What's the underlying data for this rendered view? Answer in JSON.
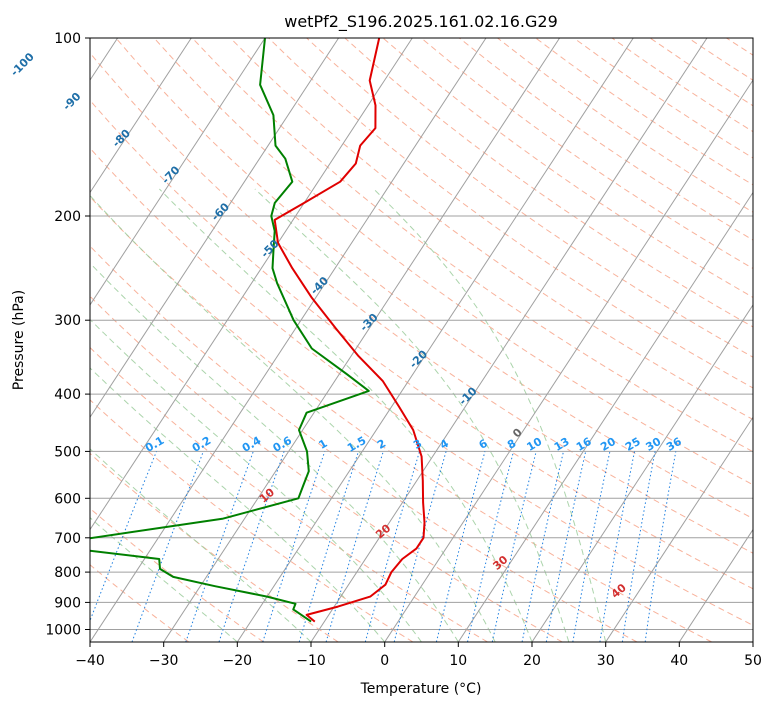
{
  "chart_data": {
    "type": "line",
    "subtype": "skew-t log-p diagram",
    "title": "wetPf2_S196.2025.161.02.16.G29",
    "xlabel": "Temperature (°C)",
    "ylabel": "Pressure (hPa)",
    "xlim": [
      -40,
      50
    ],
    "ylim": [
      1050,
      100
    ],
    "y_scale": "log",
    "xticks": [
      "−40",
      "−30",
      "−20",
      "−10",
      "0",
      "10",
      "20",
      "30",
      "40",
      "50"
    ],
    "xtick_values": [
      -40,
      -30,
      -20,
      -10,
      0,
      10,
      20,
      30,
      40,
      50
    ],
    "yticks": [
      "100",
      "200",
      "300",
      "400",
      "500",
      "600",
      "700",
      "800",
      "900",
      "1000"
    ],
    "ytick_values": [
      100,
      200,
      300,
      400,
      500,
      600,
      700,
      800,
      900,
      1000
    ],
    "grid": true,
    "colors": {
      "temperature": "#e00000",
      "dewpoint": "#008000",
      "isotherm": "#a0a0a0",
      "dry_adiabat": "#f7a58a",
      "moist_adiabat": "#9ccc9c",
      "mixing_ratio": "#1e7fe0",
      "mixing_label": "#2196f3",
      "isotherm_label": "#1f6fa8",
      "adiabat_label": "#d32f2f",
      "reference_curve": "#d8c8a8"
    },
    "series": [
      {
        "role": "temperature",
        "points": [
          [
            -11.3,
            970
          ],
          [
            -13.0,
            945
          ],
          [
            -9.5,
            915
          ],
          [
            -6.0,
            880
          ],
          [
            -5.0,
            840
          ],
          [
            -5.3,
            800
          ],
          [
            -5.0,
            760
          ],
          [
            -4.0,
            730
          ],
          [
            -4.0,
            700
          ],
          [
            -5.2,
            660
          ],
          [
            -7.2,
            610
          ],
          [
            -9.2,
            560
          ],
          [
            -11.5,
            510
          ],
          [
            -15.0,
            460
          ],
          [
            -19.0,
            420
          ],
          [
            -23.5,
            380
          ],
          [
            -29.0,
            345
          ],
          [
            -34.5,
            310
          ],
          [
            -40.5,
            275
          ],
          [
            -45.8,
            245
          ],
          [
            -50.0,
            222
          ],
          [
            -52.5,
            203
          ],
          [
            -50.0,
            190
          ],
          [
            -47.0,
            175
          ],
          [
            -46.5,
            163
          ],
          [
            -47.5,
            152
          ],
          [
            -47.0,
            142
          ],
          [
            -49.0,
            130
          ],
          [
            -52.0,
            118
          ],
          [
            -54.5,
            100
          ]
        ]
      },
      {
        "role": "dewpoint",
        "points": [
          [
            -11.8,
            970
          ],
          [
            -14.5,
            935
          ],
          [
            -15.3,
            925
          ],
          [
            -15.5,
            905
          ],
          [
            -20.0,
            880
          ],
          [
            -28.0,
            845
          ],
          [
            -34.5,
            815
          ],
          [
            -37.0,
            790
          ],
          [
            -38.0,
            760
          ],
          [
            -55.0,
            720
          ],
          [
            -33.0,
            650
          ],
          [
            -24.5,
            600
          ],
          [
            -25.0,
            570
          ],
          [
            -25.5,
            540
          ],
          [
            -27.5,
            500
          ],
          [
            -30.5,
            460
          ],
          [
            -31.0,
            430
          ],
          [
            -24.5,
            395
          ],
          [
            -29.0,
            370
          ],
          [
            -36.0,
            335
          ],
          [
            -41.0,
            300
          ],
          [
            -46.5,
            260
          ],
          [
            -48.5,
            245
          ],
          [
            -50.0,
            228
          ],
          [
            -51.5,
            212
          ],
          [
            -53.3,
            200
          ],
          [
            -54.0,
            190
          ],
          [
            -53.5,
            175
          ],
          [
            -56.5,
            160
          ],
          [
            -59.0,
            152
          ],
          [
            -62.0,
            135
          ],
          [
            -66.5,
            120
          ],
          [
            -70.0,
            100
          ]
        ]
      }
    ],
    "isotherm_labels": [
      "-100",
      "-90",
      "-80",
      "-70",
      "-60",
      "-50",
      "-40",
      "-30",
      "-20",
      "-10",
      "0"
    ],
    "isotherm_label_values": [
      -100,
      -90,
      -80,
      -70,
      -60,
      -50,
      -40,
      -30,
      -20,
      -10,
      0
    ],
    "mixing_ratio_labels": [
      "0.1",
      "0.2",
      "0.4",
      "0.6",
      "1",
      "1.5",
      "2",
      "3",
      "4",
      "6",
      "8",
      "10",
      "13",
      "16",
      "20",
      "25",
      "30",
      "36"
    ],
    "mixing_ratio_values": [
      0.1,
      0.2,
      0.4,
      0.6,
      1,
      1.5,
      2,
      3,
      4,
      6,
      8,
      10,
      13,
      16,
      20,
      25,
      30,
      36
    ],
    "dry_adiabat_labels": [
      "10",
      "20",
      "30",
      "40"
    ],
    "dry_adiabat_label_values": [
      10,
      20,
      30,
      40
    ]
  }
}
